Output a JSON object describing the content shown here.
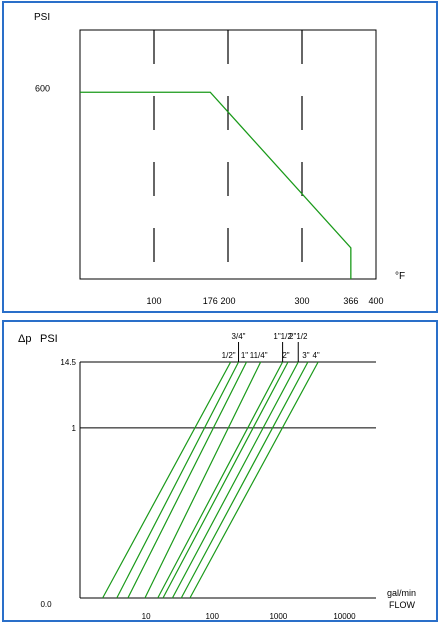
{
  "colors": {
    "border": "#2a6fc9",
    "curve": "#1a9a1a",
    "axis": "#000000"
  },
  "chart_data": [
    {
      "type": "line",
      "ylabel": "PSI",
      "xlabel": "°F",
      "xlim": [
        0,
        400
      ],
      "ylim": [
        0,
        800
      ],
      "x_ticks": [
        100,
        176,
        200,
        300,
        366,
        400
      ],
      "y_ticks": [
        600
      ],
      "series": [
        {
          "x": [
            0,
            176,
            366,
            366
          ],
          "y": [
            600,
            600,
            100,
            0
          ]
        }
      ],
      "grid": true
    },
    {
      "type": "line",
      "ylabel_symbol": "Δp",
      "ylabel": "PSI",
      "xlabel": "gal/min",
      "xlabel2": "FLOW",
      "x_scale": "log",
      "y_scale": "log",
      "x_ticks": [
        "0.0",
        "10",
        "100",
        "1000",
        "10000"
      ],
      "y_ticks": [
        "1",
        "14.5"
      ],
      "y_tick_values": [
        1,
        14.5
      ],
      "xlim": [
        1,
        30000
      ],
      "ylim": [
        0.001,
        14.5
      ],
      "grid": false,
      "series": [
        {
          "name": "1/2\"",
          "x": [
            2.2,
            190
          ],
          "y": [
            0.001,
            14.5
          ]
        },
        {
          "name": "3/4\"",
          "x": [
            3.6,
            250
          ],
          "y": [
            0.001,
            14.5
          ]
        },
        {
          "name": "1\"",
          "x": [
            5.3,
            330
          ],
          "y": [
            0.001,
            14.5
          ]
        },
        {
          "name": "11/4\"",
          "x": [
            9.6,
            540
          ],
          "y": [
            0.001,
            14.5
          ]
        },
        {
          "name": "1\"1/2",
          "x": [
            15,
            1160
          ],
          "y": [
            0.001,
            14.5
          ]
        },
        {
          "name": "2\"",
          "x": [
            18,
            1400
          ],
          "y": [
            0.001,
            14.5
          ]
        },
        {
          "name": "2\"1/2",
          "x": [
            25,
            2000
          ],
          "y": [
            0.001,
            14.5
          ]
        },
        {
          "name": "3\"",
          "x": [
            34,
            2800
          ],
          "y": [
            0.001,
            14.5
          ]
        },
        {
          "name": "4\"",
          "x": [
            46,
            4000
          ],
          "y": [
            0.001,
            14.5
          ]
        }
      ]
    }
  ]
}
